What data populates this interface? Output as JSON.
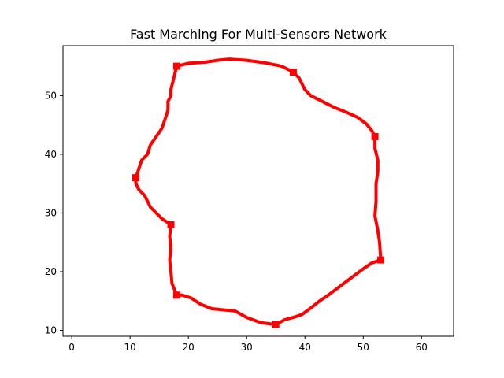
{
  "chart_data": {
    "type": "line",
    "title": "Fast Marching For Multi-Sensors Network",
    "xlabel": "",
    "ylabel": "",
    "xlim": [
      -1.5,
      65.5
    ],
    "ylim": [
      9,
      58.5
    ],
    "xticks": [
      0,
      10,
      20,
      30,
      40,
      50,
      60
    ],
    "yticks": [
      10,
      20,
      30,
      40,
      50
    ],
    "grid": false,
    "legend": "none",
    "series": [
      {
        "color": "#ff0000",
        "path": [
          [
            18,
            55
          ],
          [
            20,
            55.5
          ],
          [
            23,
            55.7
          ],
          [
            25,
            56
          ],
          [
            27,
            56.2
          ],
          [
            30,
            56
          ],
          [
            33,
            55.6
          ],
          [
            36,
            55
          ],
          [
            38,
            54
          ],
          [
            39,
            53
          ],
          [
            40,
            51
          ],
          [
            41,
            50
          ],
          [
            43,
            49
          ],
          [
            45,
            48
          ],
          [
            47,
            47.2
          ],
          [
            49,
            46.3
          ],
          [
            50.5,
            45.2
          ],
          [
            51.5,
            44
          ],
          [
            52,
            43
          ],
          [
            52,
            41
          ],
          [
            52.5,
            39
          ],
          [
            52.5,
            37
          ],
          [
            52.2,
            35
          ],
          [
            52.2,
            32
          ],
          [
            52,
            29.5
          ],
          [
            52.5,
            27
          ],
          [
            52.8,
            25
          ],
          [
            53,
            22
          ],
          [
            51.5,
            21.5
          ],
          [
            50,
            20.5
          ],
          [
            48,
            19
          ],
          [
            46,
            17.5
          ],
          [
            44,
            16
          ],
          [
            42.5,
            15
          ],
          [
            41,
            13.8
          ],
          [
            39.5,
            12.7
          ],
          [
            38,
            12.2
          ],
          [
            36.5,
            11.8
          ],
          [
            35,
            11
          ],
          [
            32.5,
            11.3
          ],
          [
            30,
            12.2
          ],
          [
            28,
            13.3
          ],
          [
            26,
            13.5
          ],
          [
            24,
            13.7
          ],
          [
            22,
            14.5
          ],
          [
            20.5,
            15.5
          ],
          [
            19,
            16
          ],
          [
            18,
            16
          ],
          [
            17.2,
            18
          ],
          [
            17,
            20
          ],
          [
            16.8,
            22
          ],
          [
            17,
            24
          ],
          [
            16.8,
            26
          ],
          [
            17,
            28
          ],
          [
            15.5,
            29
          ],
          [
            14.5,
            30
          ],
          [
            13.5,
            31
          ],
          [
            13,
            32
          ],
          [
            12.5,
            33
          ],
          [
            11.5,
            34
          ],
          [
            11,
            35
          ],
          [
            11,
            36
          ],
          [
            11.5,
            37.5
          ],
          [
            12,
            39
          ],
          [
            13,
            40
          ],
          [
            13.3,
            41
          ],
          [
            13.5,
            41.6
          ],
          [
            14.5,
            43
          ],
          [
            15.5,
            44.5
          ],
          [
            16,
            46
          ],
          [
            16.5,
            47.5
          ],
          [
            16.5,
            49
          ],
          [
            17,
            50
          ],
          [
            17,
            51
          ],
          [
            17.5,
            53
          ],
          [
            18,
            55
          ]
        ],
        "markers": [
          [
            18,
            55
          ],
          [
            38,
            54
          ],
          [
            52,
            43
          ],
          [
            53,
            22
          ],
          [
            35,
            11
          ],
          [
            18,
            16
          ],
          [
            17,
            28
          ],
          [
            11,
            36
          ]
        ]
      }
    ]
  }
}
